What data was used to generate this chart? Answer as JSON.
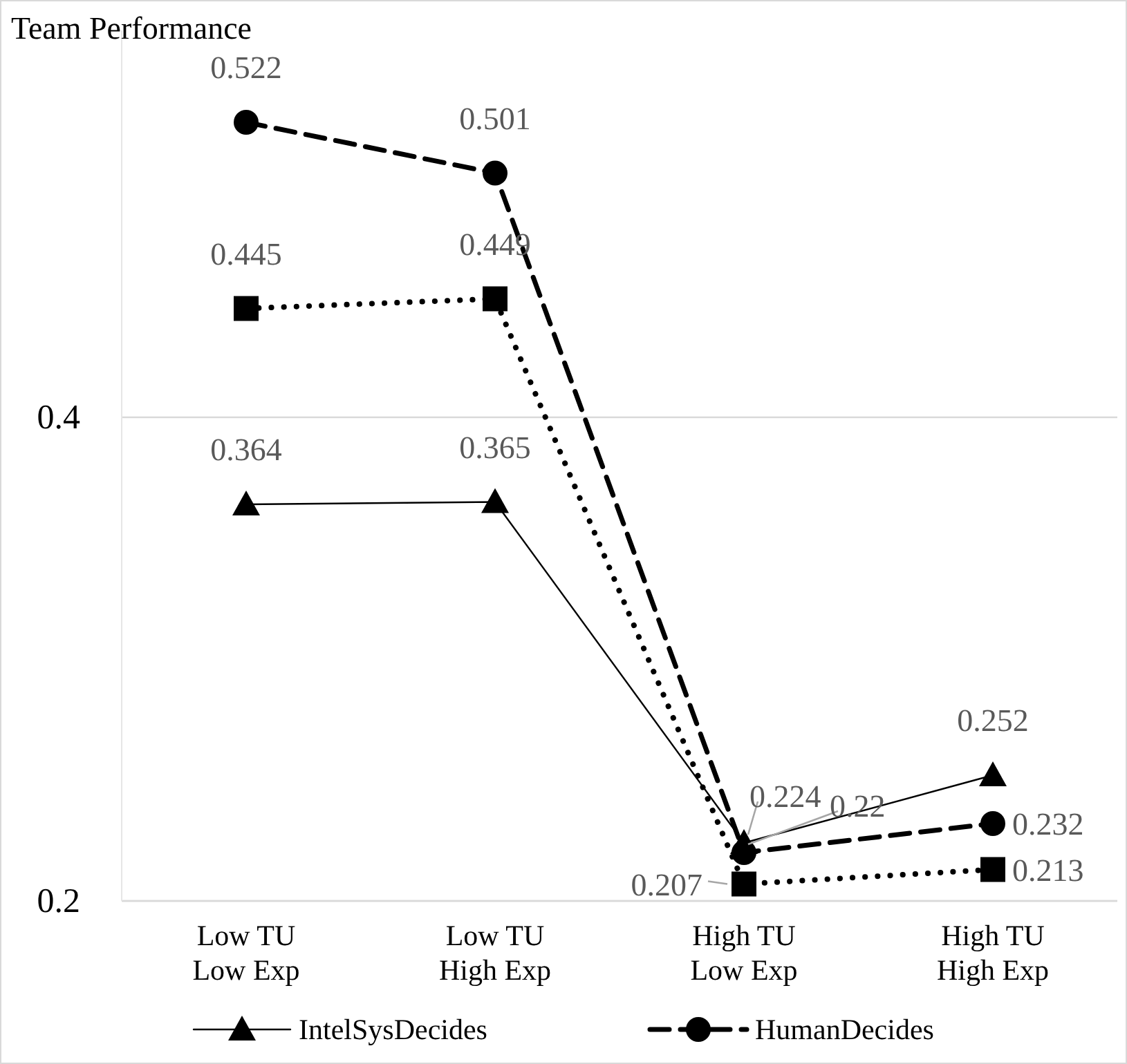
{
  "chart_data": {
    "type": "line",
    "ylabel": "Team Performance",
    "categories": [
      "Low TU\nLow Exp",
      "Low TU\nHigh Exp",
      "High TU\nLow Exp",
      "High TU\nHigh Exp"
    ],
    "series": [
      {
        "name": "IntelSysDecides",
        "color": "#000000",
        "values": [
          0.364,
          0.365,
          0.224,
          0.252
        ],
        "marker": "triangle",
        "line_style": "solid"
      },
      {
        "name": "HumanDecides",
        "color": "#000000",
        "values": [
          0.522,
          0.501,
          0.22,
          0.232
        ],
        "marker": "circle",
        "line_style": "dashed"
      },
      {
        "color": "#000000",
        "values": [
          0.445,
          0.449,
          0.207,
          0.213
        ],
        "marker": "square",
        "line_style": "dotted"
      }
    ],
    "ylim": [
      0.2,
      0.56
    ],
    "yticks": [
      0.2,
      0.4
    ],
    "grid": "y",
    "legend": "bottom",
    "data_labels": true
  }
}
